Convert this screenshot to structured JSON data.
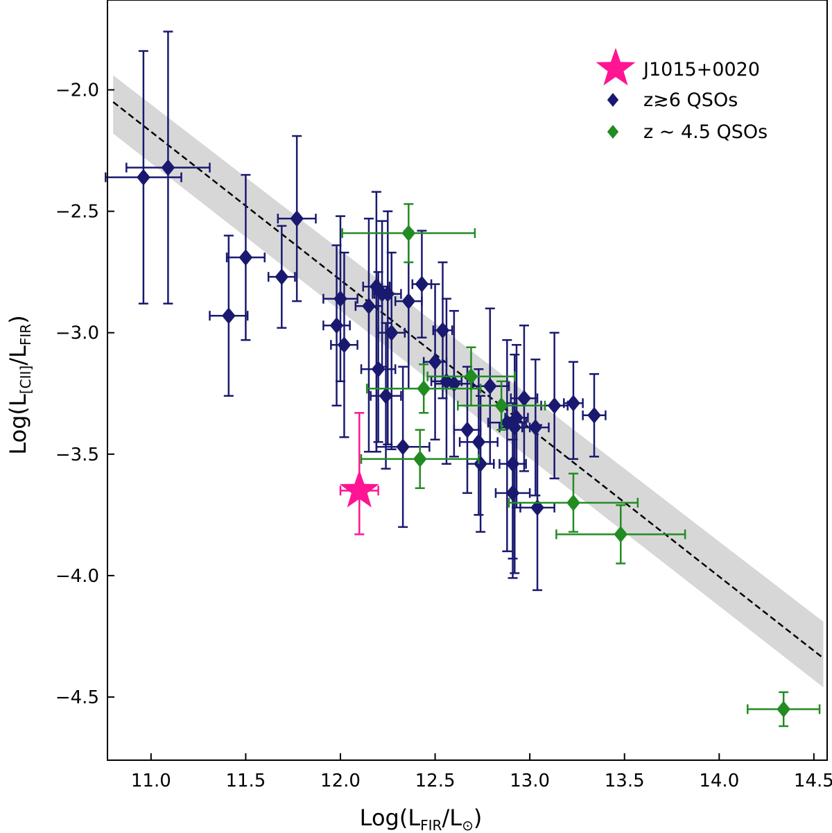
{
  "chart_data": {
    "type": "scatter",
    "xlabel": "Log(L_FIR/L_⊙)",
    "ylabel": "Log(L_[CII]/L_FIR)",
    "xlim": [
      10.77,
      14.57
    ],
    "ylim": [
      -4.76,
      -1.63
    ],
    "xticks": [
      11.0,
      11.5,
      12.0,
      12.5,
      13.0,
      13.5,
      14.0,
      14.5
    ],
    "yticks": [
      -2.0,
      -2.5,
      -3.0,
      -3.5,
      -4.0,
      -4.5
    ],
    "xtick_labels": [
      "11.0",
      "11.5",
      "12.0",
      "12.5",
      "13.0",
      "13.5",
      "14.0",
      "14.5"
    ],
    "ytick_labels": [
      "−2.0",
      "−2.5",
      "−3.0",
      "−3.5",
      "−4.0",
      "−4.5"
    ],
    "fit_line": {
      "x": [
        10.8,
        14.55
      ],
      "y": [
        -2.05,
        -4.34
      ],
      "color": "#000000",
      "style": "dashed"
    },
    "fit_band": {
      "x": [
        10.8,
        14.55
      ],
      "y_low": [
        -2.18,
        -4.46
      ],
      "y_high": [
        -1.94,
        -4.19
      ],
      "color": "#d3d3d3"
    },
    "legend": {
      "position": "top-right",
      "entries": [
        {
          "label": "J1015+0020",
          "marker": "star",
          "color": "#ff1493"
        },
        {
          "label": "z≳6 QSOs",
          "marker": "diamond",
          "color": "#191970"
        },
        {
          "label": "z ∼ 4.5 QSOs",
          "marker": "diamond",
          "color": "#228b22"
        }
      ]
    },
    "series": [
      {
        "name": "J1015+0020",
        "marker": "star",
        "color": "#ff1493",
        "points": [
          {
            "x": 12.1,
            "y": -3.65,
            "xerr": 0.1,
            "yerr_low": 0.18,
            "yerr_high": 0.32
          }
        ]
      },
      {
        "name": "z≳6 QSOs",
        "marker": "diamond",
        "color": "#191970",
        "points": [
          {
            "x": 10.96,
            "y": -2.36,
            "xerr": 0.2,
            "yerr_low": 0.52,
            "yerr_high": 0.52
          },
          {
            "x": 11.09,
            "y": -2.32,
            "xerr": 0.22,
            "yerr_low": 0.56,
            "yerr_high": 0.56
          },
          {
            "x": 11.41,
            "y": -2.93,
            "xerr": 0.1,
            "yerr_low": 0.33,
            "yerr_high": 0.33
          },
          {
            "x": 11.5,
            "y": -2.69,
            "xerr": 0.1,
            "yerr_low": 0.34,
            "yerr_high": 0.34
          },
          {
            "x": 11.69,
            "y": -2.77,
            "xerr": 0.07,
            "yerr_low": 0.21,
            "yerr_high": 0.21
          },
          {
            "x": 11.77,
            "y": -2.53,
            "xerr": 0.1,
            "yerr_low": 0.34,
            "yerr_high": 0.34
          },
          {
            "x": 11.98,
            "y": -2.97,
            "xerr": 0.07,
            "yerr_low": 0.33,
            "yerr_high": 0.33
          },
          {
            "x": 12.0,
            "y": -2.86,
            "xerr": 0.09,
            "yerr_low": 0.34,
            "yerr_high": 0.34
          },
          {
            "x": 12.02,
            "y": -3.05,
            "xerr": 0.07,
            "yerr_low": 0.38,
            "yerr_high": 0.38
          },
          {
            "x": 12.15,
            "y": -2.89,
            "xerr": 0.07,
            "yerr_low": 0.6,
            "yerr_high": 0.36
          },
          {
            "x": 12.19,
            "y": -2.81,
            "xerr": 0.07,
            "yerr_low": 0.68,
            "yerr_high": 0.39
          },
          {
            "x": 12.2,
            "y": -3.15,
            "xerr": 0.09,
            "yerr_low": 0.3,
            "yerr_high": 0.4
          },
          {
            "x": 12.22,
            "y": -2.84,
            "xerr": 0.05,
            "yerr_low": 0.3,
            "yerr_high": 0.3
          },
          {
            "x": 12.24,
            "y": -3.26,
            "xerr": 0.08,
            "yerr_low": 0.3,
            "yerr_high": 0.3
          },
          {
            "x": 12.25,
            "y": -2.84,
            "xerr": 0.07,
            "yerr_low": 0.62,
            "yerr_high": 0.34
          },
          {
            "x": 12.27,
            "y": -3.0,
            "xerr": 0.07,
            "yerr_low": 0.48,
            "yerr_high": 0.33
          },
          {
            "x": 12.33,
            "y": -3.47,
            "xerr": 0.14,
            "yerr_low": 0.33,
            "yerr_high": 0.33
          },
          {
            "x": 12.36,
            "y": -2.87,
            "xerr": 0.07,
            "yerr_low": 0.36,
            "yerr_high": 0.29
          },
          {
            "x": 12.43,
            "y": -2.8,
            "xerr": 0.05,
            "yerr_low": 0.22,
            "yerr_high": 0.22
          },
          {
            "x": 12.5,
            "y": -3.12,
            "xerr": 0.06,
            "yerr_low": 0.32,
            "yerr_high": 0.32
          },
          {
            "x": 12.54,
            "y": -2.99,
            "xerr": 0.05,
            "yerr_low": 0.28,
            "yerr_high": 0.28
          },
          {
            "x": 12.56,
            "y": -3.2,
            "xerr": 0.08,
            "yerr_low": 0.34,
            "yerr_high": 0.34
          },
          {
            "x": 12.6,
            "y": -3.21,
            "xerr": 0.1,
            "yerr_low": 0.3,
            "yerr_high": 0.3
          },
          {
            "x": 12.67,
            "y": -3.4,
            "xerr": 0.07,
            "yerr_low": 0.26,
            "yerr_high": 0.26
          },
          {
            "x": 12.73,
            "y": -3.45,
            "xerr": 0.1,
            "yerr_low": 0.3,
            "yerr_high": 0.3
          },
          {
            "x": 12.74,
            "y": -3.54,
            "xerr": 0.07,
            "yerr_low": 0.28,
            "yerr_high": 0.28
          },
          {
            "x": 12.79,
            "y": -3.22,
            "xerr": 0.1,
            "yerr_low": 0.32,
            "yerr_high": 0.32
          },
          {
            "x": 12.88,
            "y": -3.37,
            "xerr": 0.1,
            "yerr_low": 0.53,
            "yerr_high": 0.34
          },
          {
            "x": 12.91,
            "y": -3.66,
            "xerr": 0.09,
            "yerr_low": 0.35,
            "yerr_high": 0.22
          },
          {
            "x": 12.91,
            "y": -3.54,
            "xerr": 0.07,
            "yerr_low": 0.39,
            "yerr_high": 0.25
          },
          {
            "x": 12.92,
            "y": -3.39,
            "xerr": 0.08,
            "yerr_low": 0.6,
            "yerr_high": 0.3
          },
          {
            "x": 12.93,
            "y": -3.35,
            "xerr": 0.06,
            "yerr_low": 0.37,
            "yerr_high": 0.3
          },
          {
            "x": 12.97,
            "y": -3.27,
            "xerr": 0.07,
            "yerr_low": 0.3,
            "yerr_high": 0.3
          },
          {
            "x": 13.03,
            "y": -3.39,
            "xerr": 0.07,
            "yerr_low": 0.28,
            "yerr_high": 0.28
          },
          {
            "x": 13.04,
            "y": -3.72,
            "xerr": 0.09,
            "yerr_low": 0.34,
            "yerr_high": 0.34
          },
          {
            "x": 13.13,
            "y": -3.3,
            "xerr": 0.07,
            "yerr_low": 0.3,
            "yerr_high": 0.3
          },
          {
            "x": 13.23,
            "y": -3.29,
            "xerr": 0.05,
            "yerr_low": 0.23,
            "yerr_high": 0.17
          },
          {
            "x": 13.34,
            "y": -3.34,
            "xerr": 0.06,
            "yerr_low": 0.17,
            "yerr_high": 0.17
          }
        ]
      },
      {
        "name": "z ∼ 4.5 QSOs",
        "marker": "diamond",
        "color": "#228b22",
        "points": [
          {
            "x": 12.36,
            "y": -2.59,
            "xerr": 0.35,
            "yerr_low": 0.12,
            "yerr_high": 0.12
          },
          {
            "x": 12.44,
            "y": -3.23,
            "xerr": 0.3,
            "yerr_low": 0.1,
            "yerr_high": 0.1
          },
          {
            "x": 12.42,
            "y": -3.52,
            "xerr": 0.31,
            "yerr_low": 0.12,
            "yerr_high": 0.12
          },
          {
            "x": 12.69,
            "y": -3.18,
            "xerr": 0.23,
            "yerr_low": 0.12,
            "yerr_high": 0.12
          },
          {
            "x": 12.85,
            "y": -3.3,
            "xerr": 0.23,
            "yerr_low": 0.1,
            "yerr_high": 0.1
          },
          {
            "x": 13.23,
            "y": -3.7,
            "xerr": 0.34,
            "yerr_low": 0.12,
            "yerr_high": 0.12
          },
          {
            "x": 13.48,
            "y": -3.83,
            "xerr": 0.34,
            "yerr_low": 0.12,
            "yerr_high": 0.12
          },
          {
            "x": 14.34,
            "y": -4.55,
            "xerr": 0.19,
            "yerr_low": 0.07,
            "yerr_high": 0.07
          }
        ]
      }
    ]
  }
}
